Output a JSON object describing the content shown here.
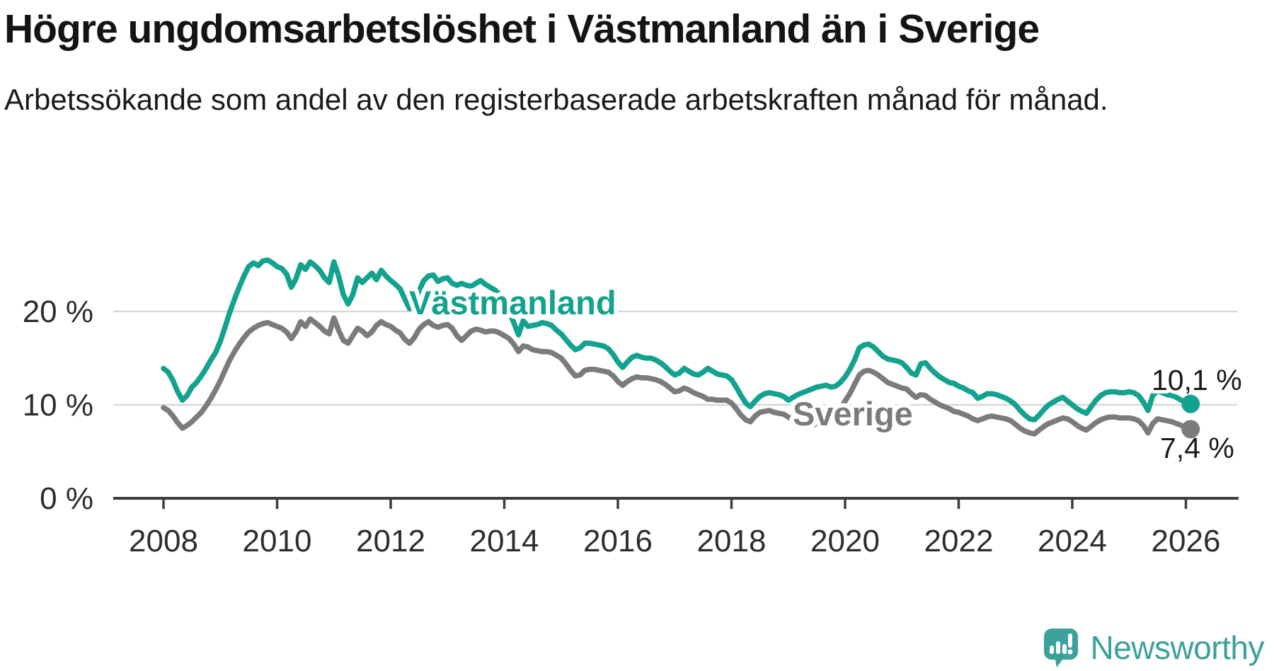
{
  "header": {
    "title": "Högre ungdomsarbetslöshet i Västmanland än i Sverige",
    "subtitle": "Arbetssökande som andel av den registerbaserade arbetskraften månad för månad."
  },
  "footer": {
    "logo_text": "Newsworthy"
  },
  "colors": {
    "vastmanland_line": "#13a28d",
    "sverige_line": "#7b7b7b",
    "gridline": "#d8d8d8",
    "axis": "#3d3d3d",
    "axis_text": "#2d2d2d",
    "annotation_text": "#1a1a1a",
    "logo_teal": "#3ba19a",
    "background": "#ffffff"
  },
  "chart_data": {
    "type": "line",
    "title": "Högre ungdomsarbetslöshet i Västmanland än i Sverige",
    "subtitle": "Arbetssökande som andel av den registerbaserade arbetskraften månad för månad.",
    "grid": "horizontal",
    "legend": "inline-series-labels",
    "x": {
      "start_year": 2008,
      "points_per_month": 1,
      "last_point_year": 2026.083
    },
    "xticks": [
      2008,
      2010,
      2012,
      2014,
      2016,
      2018,
      2020,
      2022,
      2024,
      2026
    ],
    "yticks": [
      {
        "value": 0,
        "label": "0 %"
      },
      {
        "value": 10,
        "label": "10 %"
      },
      {
        "value": 20,
        "label": "20 %"
      }
    ],
    "ylim": [
      0,
      27
    ],
    "unit": "%",
    "series": [
      {
        "id": "vastmanland",
        "name": "Västmanland",
        "color": "#13a28d",
        "end_value": 10.1,
        "end_label": "10,1 %",
        "values": [
          13.9,
          13.5,
          12.6,
          11.4,
          10.5,
          11.0,
          11.9,
          12.4,
          13.1,
          13.9,
          14.8,
          15.6,
          16.8,
          18.3,
          19.9,
          21.3,
          22.6,
          23.8,
          24.8,
          25.2,
          24.9,
          25.4,
          25.5,
          25.2,
          24.8,
          24.6,
          24.0,
          22.6,
          23.5,
          25.0,
          24.5,
          25.3,
          24.9,
          24.4,
          23.6,
          23.1,
          25.3,
          23.8,
          21.8,
          20.8,
          21.8,
          23.6,
          23.1,
          23.6,
          24.1,
          23.4,
          24.4,
          23.8,
          23.3,
          22.9,
          22.4,
          21.3,
          20.3,
          20.7,
          22.2,
          23.3,
          23.8,
          23.9,
          23.2,
          23.5,
          23.6,
          23.0,
          22.8,
          23.0,
          22.8,
          22.7,
          23.0,
          23.3,
          22.9,
          22.6,
          22.3,
          21.8,
          21.0,
          20.0,
          18.8,
          17.5,
          19.0,
          18.4,
          18.5,
          18.6,
          18.8,
          18.7,
          18.5,
          18.0,
          17.6,
          17.0,
          16.4,
          15.9,
          16.1,
          16.6,
          16.6,
          16.5,
          16.4,
          16.3,
          16.0,
          15.4,
          14.6,
          14.0,
          14.6,
          15.1,
          15.3,
          15.1,
          15.0,
          15.0,
          14.8,
          14.5,
          14.1,
          13.6,
          13.2,
          13.4,
          13.9,
          13.6,
          13.3,
          13.2,
          13.5,
          13.9,
          13.6,
          13.3,
          13.2,
          13.1,
          12.7,
          11.9,
          11.0,
          10.2,
          9.8,
          10.4,
          10.9,
          11.2,
          11.3,
          11.2,
          11.1,
          10.9,
          10.5,
          10.8,
          11.1,
          11.3,
          11.5,
          11.7,
          11.9,
          12.0,
          12.1,
          11.9,
          12.0,
          12.4,
          13.0,
          13.8,
          14.8,
          16.1,
          16.4,
          16.5,
          16.2,
          15.7,
          15.2,
          14.9,
          14.8,
          14.7,
          14.5,
          14.0,
          13.4,
          13.2,
          14.4,
          14.5,
          13.9,
          13.4,
          13.0,
          12.7,
          12.4,
          12.3,
          12.0,
          11.8,
          11.5,
          11.3,
          10.7,
          10.9,
          11.2,
          11.2,
          11.1,
          10.9,
          10.7,
          10.4,
          10.0,
          9.4,
          8.9,
          8.5,
          8.4,
          8.9,
          9.5,
          10.0,
          10.3,
          10.6,
          10.8,
          10.4,
          10.0,
          9.6,
          9.3,
          9.1,
          9.8,
          10.5,
          11.0,
          11.3,
          11.4,
          11.4,
          11.3,
          11.3,
          11.4,
          11.3,
          11.0,
          10.3,
          9.4,
          11.0,
          11.5,
          11.3,
          11.1,
          11.0,
          10.8,
          10.5,
          10.3,
          10.1
        ]
      },
      {
        "id": "sverige",
        "name": "Sverige",
        "color": "#7b7b7b",
        "end_value": 7.4,
        "end_label": "7,4 %",
        "values": [
          9.7,
          9.4,
          8.8,
          8.1,
          7.5,
          7.8,
          8.2,
          8.7,
          9.2,
          9.9,
          10.7,
          11.6,
          12.6,
          13.7,
          14.8,
          15.7,
          16.5,
          17.2,
          17.8,
          18.2,
          18.5,
          18.7,
          18.8,
          18.6,
          18.4,
          18.2,
          17.8,
          17.1,
          17.8,
          18.9,
          18.4,
          19.2,
          18.8,
          18.4,
          17.9,
          17.6,
          19.3,
          18.0,
          16.9,
          16.6,
          17.4,
          18.2,
          17.9,
          17.4,
          17.8,
          18.5,
          18.9,
          18.6,
          18.4,
          18.0,
          17.7,
          17.0,
          16.6,
          17.2,
          18.1,
          18.6,
          18.9,
          18.5,
          18.3,
          18.5,
          18.6,
          18.2,
          17.4,
          16.9,
          17.4,
          17.9,
          18.1,
          18.0,
          17.8,
          17.9,
          17.9,
          17.7,
          17.4,
          17.1,
          16.5,
          15.7,
          16.3,
          16.2,
          15.9,
          15.8,
          15.7,
          15.7,
          15.6,
          15.3,
          15.0,
          14.4,
          13.7,
          13.1,
          13.2,
          13.7,
          13.8,
          13.8,
          13.7,
          13.6,
          13.5,
          13.1,
          12.5,
          12.1,
          12.5,
          12.8,
          13.0,
          12.9,
          12.9,
          12.8,
          12.7,
          12.5,
          12.2,
          11.8,
          11.4,
          11.5,
          11.8,
          11.6,
          11.3,
          11.1,
          10.9,
          10.6,
          10.6,
          10.5,
          10.5,
          10.5,
          10.2,
          9.6,
          8.9,
          8.4,
          8.2,
          8.8,
          9.2,
          9.3,
          9.4,
          9.2,
          9.1,
          9.0,
          8.7,
          8.4,
          8.0,
          7.7,
          7.6,
          7.8,
          8.0,
          8.3,
          8.5,
          8.7,
          9.0,
          9.6,
          10.4,
          11.2,
          12.2,
          13.2,
          13.6,
          13.7,
          13.5,
          13.2,
          12.8,
          12.4,
          12.2,
          12.0,
          11.8,
          11.7,
          11.2,
          10.8,
          11.1,
          11.0,
          10.6,
          10.3,
          10.0,
          9.8,
          9.6,
          9.3,
          9.2,
          9.0,
          8.8,
          8.5,
          8.3,
          8.5,
          8.7,
          8.8,
          8.7,
          8.6,
          8.5,
          8.3,
          7.9,
          7.5,
          7.2,
          7.0,
          6.9,
          7.3,
          7.7,
          8.0,
          8.2,
          8.4,
          8.6,
          8.5,
          8.2,
          7.8,
          7.5,
          7.3,
          7.7,
          8.1,
          8.4,
          8.6,
          8.7,
          8.7,
          8.6,
          8.6,
          8.6,
          8.5,
          8.3,
          7.8,
          7.0,
          8.0,
          8.5,
          8.4,
          8.3,
          8.2,
          8.0,
          7.8,
          7.6,
          7.4
        ]
      }
    ]
  }
}
